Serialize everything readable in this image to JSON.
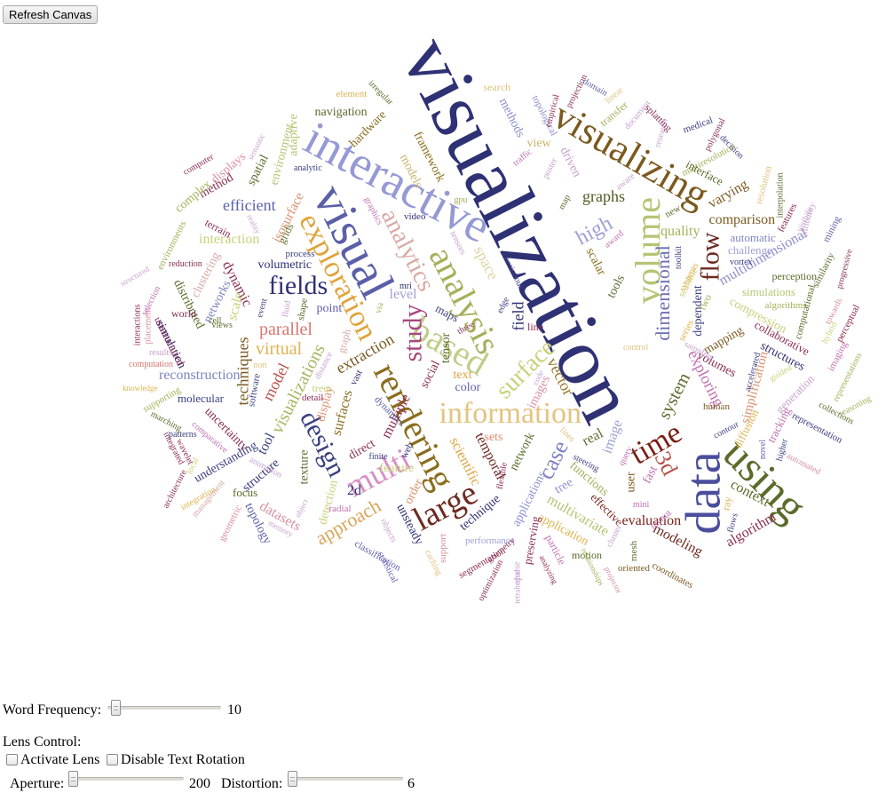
{
  "refresh_button": {
    "label": "Refresh Canvas"
  },
  "controls": {
    "word_frequency": {
      "label": "Word Frequency:",
      "value": "10",
      "slider_fraction": 0.03
    },
    "lens_control_label": "Lens Control:",
    "activate_lens": {
      "label": "Activate Lens",
      "checked": false
    },
    "disable_rotation": {
      "label": "Disable Text Rotation",
      "checked": false
    },
    "aperture": {
      "label": "Aperture:",
      "value": "200",
      "slider_fraction": 0.0
    },
    "distortion": {
      "label": "Distortion:",
      "value": "6",
      "slider_fraction": 0.0
    }
  },
  "word_cloud": {
    "words": [
      {
        "t": "visualization",
        "c": "#2e3174"
      },
      {
        "t": "data",
        "c": "#4a4e9c"
      },
      {
        "t": "interactive",
        "c": "#9599d4"
      },
      {
        "t": "visual",
        "c": "#5b5fa8"
      },
      {
        "t": "using",
        "c": "#5a6b2a"
      },
      {
        "t": "visualizing",
        "c": "#7b5a1f"
      },
      {
        "t": "information",
        "c": "#e3c47e"
      },
      {
        "t": "rendering",
        "c": "#8a6d1d"
      },
      {
        "t": "analysis",
        "c": "#a5b05a"
      },
      {
        "t": "volume",
        "c": "#b4c472"
      },
      {
        "t": "large",
        "c": "#6e2a20"
      },
      {
        "t": "based",
        "c": "#bfcd8a"
      },
      {
        "t": "exploration",
        "c": "#e0a33b"
      },
      {
        "t": "multi",
        "c": "#d98fc4"
      },
      {
        "t": "fields",
        "c": "#2e3174"
      },
      {
        "t": "time",
        "c": "#7a1f14"
      },
      {
        "t": "analytics",
        "c": "#d7a8a4"
      },
      {
        "t": "study",
        "c": "#a7467e"
      },
      {
        "t": "flow",
        "c": "#6e2a20"
      },
      {
        "t": "design",
        "c": "#3a3f80"
      },
      {
        "t": "surface",
        "c": "#c9d17a"
      },
      {
        "t": "3d",
        "c": "#b7534e"
      },
      {
        "t": "case",
        "c": "#7f83c4"
      },
      {
        "t": "high",
        "c": "#9da1d6"
      },
      {
        "t": "dimensional",
        "c": "#6a6eb4"
      },
      {
        "t": "approach",
        "c": "#d9a65a"
      },
      {
        "t": "parallel",
        "c": "#d9756e"
      },
      {
        "t": "virtual",
        "c": "#e0b24f"
      },
      {
        "t": "visualizations",
        "c": "#a5b55e"
      },
      {
        "t": "techniques",
        "c": "#7b5a1f"
      },
      {
        "t": "reconstruction",
        "c": "#7f83c4"
      },
      {
        "t": "efficient",
        "c": "#5b5fa8"
      },
      {
        "t": "interaction",
        "c": "#c9d17a"
      },
      {
        "t": "graphs",
        "c": "#4f5d22"
      },
      {
        "t": "system",
        "c": "#5a6b2a"
      },
      {
        "t": "exploring",
        "c": "#c06fb0"
      },
      {
        "t": "space",
        "c": "#e0d4a0"
      },
      {
        "t": "multidimensional",
        "c": "#8b8fce"
      },
      {
        "t": "comparison",
        "c": "#7b5a1f"
      },
      {
        "t": "quality",
        "c": "#a5b05a"
      },
      {
        "t": "dynamic",
        "c": "#8a2c52"
      },
      {
        "t": "model",
        "c": "#b7534e"
      },
      {
        "t": "extraction",
        "c": "#7b5a1f"
      },
      {
        "t": "field",
        "c": "#2e3174"
      },
      {
        "t": "vector",
        "c": "#9a7a2a"
      },
      {
        "t": "scientific",
        "c": "#e0a33b"
      },
      {
        "t": "multivariate",
        "c": "#b4c472"
      },
      {
        "t": "temporal",
        "c": "#6e2a20"
      },
      {
        "t": "datasets",
        "c": "#d98fa0"
      },
      {
        "t": "evaluation",
        "c": "#7a1f14"
      },
      {
        "t": "modeling",
        "c": "#6e2a20"
      },
      {
        "t": "algorithm",
        "c": "#8a2c52"
      },
      {
        "t": "context",
        "c": "#5a6b2a"
      },
      {
        "t": "simplification",
        "c": "#d98f6a"
      },
      {
        "t": "varying",
        "c": "#7b5a1f"
      },
      {
        "t": "navigation",
        "c": "#5a6b2a"
      },
      {
        "t": "framework",
        "c": "#8a6d1d"
      },
      {
        "t": "models",
        "c": "#c9b56a"
      },
      {
        "t": "view",
        "c": "#c9b56a"
      },
      {
        "t": "driven",
        "c": "#c9a0d0"
      },
      {
        "t": "isosurface",
        "c": "#d98f6a"
      },
      {
        "t": "environment",
        "c": "#b4c472"
      },
      {
        "t": "adaptive",
        "c": "#b4c472"
      },
      {
        "t": "spatial",
        "c": "#5a6b2a"
      },
      {
        "t": "method",
        "c": "#8a2c52"
      },
      {
        "t": "complex",
        "c": "#a5b05a"
      },
      {
        "t": "displays",
        "c": "#d98fa0"
      },
      {
        "t": "hardware",
        "c": "#8a6d1d"
      },
      {
        "t": "volumetric",
        "c": "#2e3174"
      },
      {
        "t": "point",
        "c": "#5b5fa8"
      },
      {
        "t": "level",
        "c": "#9da1d6"
      },
      {
        "t": "scalar",
        "c": "#8a6d1d"
      },
      {
        "t": "tools",
        "c": "#5a6b2a"
      },
      {
        "t": "structures",
        "c": "#2e3174"
      },
      {
        "t": "collaborative",
        "c": "#8a2c52"
      },
      {
        "t": "simulations",
        "c": "#b4c472"
      },
      {
        "t": "compression",
        "c": "#c9d17a"
      },
      {
        "t": "mapping",
        "c": "#7b5a1f"
      },
      {
        "t": "volumes",
        "c": "#8a2c52"
      },
      {
        "t": "dependent",
        "c": "#3a3f80"
      },
      {
        "t": "automatic",
        "c": "#7f83c4"
      },
      {
        "t": "challenge",
        "c": "#9da1d6"
      },
      {
        "t": "perception",
        "c": "#5a6b2a"
      },
      {
        "t": "algorithms",
        "c": "#a5b05a"
      },
      {
        "t": "simulation",
        "c": "#2e3174"
      },
      {
        "t": "networks",
        "c": "#7f83c4"
      },
      {
        "t": "clustering",
        "c": "#d7a8a4"
      },
      {
        "t": "distributed",
        "c": "#5a6b2a"
      },
      {
        "t": "unstructured",
        "c": "#8a2c52"
      },
      {
        "t": "molecular",
        "c": "#3a3f80"
      },
      {
        "t": "uncertainty",
        "c": "#8a2c52"
      },
      {
        "t": "understanding",
        "c": "#3a3f80"
      },
      {
        "t": "structure",
        "c": "#2e3174"
      },
      {
        "t": "topology",
        "c": "#5b5fa8"
      },
      {
        "t": "focus",
        "c": "#5a6b2a"
      },
      {
        "t": "texture",
        "c": "#5a6b2a"
      },
      {
        "t": "detection",
        "c": "#c9d17a"
      },
      {
        "t": "2d",
        "c": "#2e3174"
      },
      {
        "t": "direct",
        "c": "#8a2c52"
      },
      {
        "t": "feature",
        "c": "#c9d17a"
      },
      {
        "t": "surfaces",
        "c": "#8a6d1d"
      },
      {
        "t": "display",
        "c": "#d98f6a"
      },
      {
        "t": "trees",
        "c": "#c9d17a"
      },
      {
        "t": "graph",
        "c": "#d7a8a4"
      },
      {
        "t": "tool",
        "c": "#3a3f80"
      },
      {
        "t": "grids",
        "c": "#5a6b2a"
      },
      {
        "t": "real",
        "c": "#5a6b2a"
      },
      {
        "t": "image",
        "c": "#9da1d6"
      },
      {
        "t": "fast",
        "c": "#c06fb0"
      },
      {
        "t": "user",
        "c": "#7b5a1f"
      },
      {
        "t": "functions",
        "c": "#a5b05a"
      },
      {
        "t": "network",
        "c": "#5a6b2a"
      },
      {
        "t": "applications",
        "c": "#8b8fce"
      },
      {
        "t": "tree",
        "c": "#8b8fce"
      },
      {
        "t": "effective",
        "c": "#7a1f14"
      },
      {
        "t": "technique",
        "c": "#2e3174"
      },
      {
        "t": "application",
        "c": "#e0b24f"
      },
      {
        "t": "particle",
        "c": "#c06fb0"
      },
      {
        "t": "preserving",
        "c": "#8a2c52"
      },
      {
        "t": "coordinates",
        "c": "#7b5a1f"
      },
      {
        "t": "sets",
        "c": "#d98f6a"
      },
      {
        "t": "social",
        "c": "#8a2c52"
      },
      {
        "t": "maps",
        "c": "#3a3f80"
      },
      {
        "t": "tensor",
        "c": "#5a6b2a"
      },
      {
        "t": "text",
        "c": "#e0a33b"
      },
      {
        "t": "color",
        "c": "#5b5fa8"
      },
      {
        "t": "performance",
        "c": "#9da1d6"
      },
      {
        "t": "mesh",
        "c": "#5a6b2a"
      },
      {
        "t": "oriented",
        "c": "#7b5a1f"
      },
      {
        "t": "motion",
        "c": "#5a6b2a"
      },
      {
        "t": "segmentation",
        "c": "#8a2c52"
      },
      {
        "t": "classification",
        "c": "#5b5fa8"
      },
      {
        "t": "statistical",
        "c": "#5b5fa8"
      },
      {
        "t": "unsteady",
        "c": "#2e3174"
      },
      {
        "t": "order",
        "c": "#d98f6a"
      },
      {
        "t": "radial",
        "c": "#c06fb0"
      },
      {
        "t": "geometric",
        "c": "#d98fa0"
      },
      {
        "t": "integration",
        "c": "#e0b24f"
      },
      {
        "t": "management",
        "c": "#d7a8a4"
      },
      {
        "t": "architecture",
        "c": "#8a2c52"
      },
      {
        "t": "wavelet",
        "c": "#8a2c52"
      },
      {
        "t": "integrated",
        "c": "#8a2c52"
      },
      {
        "t": "patterns",
        "c": "#3a3f80"
      },
      {
        "t": "marching",
        "c": "#5a6b2a"
      },
      {
        "t": "supporting",
        "c": "#a5b05a"
      },
      {
        "t": "knowledge",
        "c": "#e0b24f"
      },
      {
        "t": "computation",
        "c": "#d9756e"
      },
      {
        "t": "results",
        "c": "#c9a0d0"
      },
      {
        "t": "interactions",
        "c": "#8a2c52"
      },
      {
        "t": "placement",
        "c": "#d98fa0"
      },
      {
        "t": "selection",
        "c": "#c06fb0"
      },
      {
        "t": "world",
        "c": "#8a2c52"
      },
      {
        "t": "cell",
        "c": "#5a6b2a"
      },
      {
        "t": "views",
        "c": "#5a6b2a"
      },
      {
        "t": "terrain",
        "c": "#8a2c52"
      },
      {
        "t": "reduction",
        "c": "#8a2c52"
      },
      {
        "t": "environments",
        "c": "#a5b05a"
      },
      {
        "t": "structured",
        "c": "#c9a0d0"
      },
      {
        "t": "computer",
        "c": "#8a2c52"
      },
      {
        "t": "semantic",
        "c": "#c9a0d0"
      },
      {
        "t": "element",
        "c": "#e0b24f"
      },
      {
        "t": "irregular",
        "c": "#5a6b2a"
      },
      {
        "t": "search",
        "c": "#e0c27e"
      },
      {
        "t": "methods",
        "c": "#8b8fce"
      },
      {
        "t": "topological",
        "c": "#8b8fce"
      },
      {
        "t": "empirical",
        "c": "#8a2c52"
      },
      {
        "t": "projection",
        "c": "#8a2c52"
      },
      {
        "t": "domain",
        "c": "#5b5fa8"
      },
      {
        "t": "linear",
        "c": "#e0c27e"
      },
      {
        "t": "transfer",
        "c": "#a5b05a"
      },
      {
        "t": "document",
        "c": "#c9a0d0"
      },
      {
        "t": "research",
        "c": "#c9a0d0"
      },
      {
        "t": "splatting",
        "c": "#8a2c52"
      },
      {
        "t": "medical",
        "c": "#3a3f80"
      },
      {
        "t": "polygonal",
        "c": "#8a2c52"
      },
      {
        "t": "multiresolution",
        "c": "#a5b05a"
      },
      {
        "t": "decision",
        "c": "#3a3f80"
      },
      {
        "t": "interface",
        "c": "#5a6b2a"
      },
      {
        "t": "interpolation",
        "c": "#5a6b2a"
      },
      {
        "t": "resolution",
        "c": "#e0c27e"
      },
      {
        "t": "features",
        "c": "#8a2c52"
      },
      {
        "t": "visibility",
        "c": "#c9a0d0"
      },
      {
        "t": "attribute",
        "c": "#c9a0d0"
      },
      {
        "t": "mining",
        "c": "#5b5fa8"
      },
      {
        "t": "progressive",
        "c": "#8a2c52"
      },
      {
        "t": "similarity",
        "c": "#5a6b2a"
      },
      {
        "t": "computational",
        "c": "#5a6b2a"
      },
      {
        "t": "towards",
        "c": "#d98fa0"
      },
      {
        "t": "perceptual",
        "c": "#8a2c52"
      },
      {
        "t": "hybrid",
        "c": "#c9d17a"
      },
      {
        "t": "imaging",
        "c": "#c06fb0"
      },
      {
        "t": "representations",
        "c": "#a5b05a"
      },
      {
        "t": "reasoning",
        "c": "#a5b05a"
      },
      {
        "t": "collections",
        "c": "#5a6b2a"
      },
      {
        "t": "representation",
        "c": "#3a3f80"
      },
      {
        "t": "automated",
        "c": "#d98fa0"
      },
      {
        "t": "higher",
        "c": "#3a3f80"
      },
      {
        "t": "novel",
        "c": "#5b5fa8"
      },
      {
        "t": "generation",
        "c": "#c9a0d0"
      },
      {
        "t": "tracking",
        "c": "#c06fb0"
      },
      {
        "t": "diffusion",
        "c": "#e0b24f"
      },
      {
        "t": "guided",
        "c": "#c9d17a"
      },
      {
        "t": "accelerated",
        "c": "#3a3f80"
      },
      {
        "t": "human",
        "c": "#7b5a1f"
      },
      {
        "t": "contour",
        "c": "#3a3f80"
      },
      {
        "t": "flows",
        "c": "#3a3f80"
      },
      {
        "t": "ray",
        "c": "#e0b24f"
      },
      {
        "t": "layout",
        "c": "#c06fb0"
      },
      {
        "t": "mini",
        "c": "#c06fb0"
      },
      {
        "t": "cluster",
        "c": "#c9a0d0"
      },
      {
        "t": "query",
        "c": "#c06fb0"
      },
      {
        "t": "steering",
        "c": "#3a3f80"
      },
      {
        "t": "lines",
        "c": "#e0c27e"
      },
      {
        "t": "web",
        "c": "#2e3174"
      },
      {
        "t": "finite",
        "c": "#3a3f80"
      },
      {
        "t": "multiple",
        "c": "#8a2c52"
      },
      {
        "t": "dynamics",
        "c": "#5b5fa8"
      },
      {
        "t": "vast",
        "c": "#2e3174"
      },
      {
        "t": "detail",
        "c": "#8a2c52"
      },
      {
        "t": "distance",
        "c": "#c9a0d0"
      },
      {
        "t": "software",
        "c": "#3a3f80"
      },
      {
        "t": "non",
        "c": "#e0c27e"
      },
      {
        "t": "scale",
        "c": "#c9d17a"
      },
      {
        "t": "shape",
        "c": "#5a6b2a"
      },
      {
        "t": "fluid",
        "c": "#c9a0d0"
      },
      {
        "t": "event",
        "c": "#3a3f80"
      },
      {
        "t": "via",
        "c": "#a5b05a"
      },
      {
        "t": "mri",
        "c": "#2e3174"
      },
      {
        "t": "three",
        "c": "#8a2c52"
      },
      {
        "t": "edge",
        "c": "#3a3f80"
      },
      {
        "t": "line",
        "c": "#8a2c52"
      },
      {
        "t": "images",
        "c": "#d98fa0"
      },
      {
        "t": "control",
        "c": "#e0c27e"
      },
      {
        "t": "sampling",
        "c": "#c9a0d0"
      },
      {
        "t": "video",
        "c": "#2e3174"
      },
      {
        "t": "process",
        "c": "#3a3f80"
      },
      {
        "t": "analytic",
        "c": "#3a3f80"
      },
      {
        "t": "reality",
        "c": "#c9a0d0"
      },
      {
        "t": "graphics",
        "c": "#c06fb0"
      },
      {
        "t": "gpu",
        "c": "#a5b05a"
      },
      {
        "t": "continuous",
        "c": "#3a3f80"
      },
      {
        "t": "tensors",
        "c": "#c9a0d0"
      },
      {
        "t": "map",
        "c": "#5a6b2a"
      },
      {
        "t": "poster",
        "c": "#c9a0d0"
      },
      {
        "t": "traffic",
        "c": "#c06fb0"
      },
      {
        "t": "aware",
        "c": "#c9a0d0"
      },
      {
        "t": "award",
        "c": "#c06fb0"
      },
      {
        "t": "new",
        "c": "#5a6b2a"
      },
      {
        "t": "vortex",
        "c": "#3a3f80"
      },
      {
        "t": "toolkit",
        "c": "#3a3f80"
      },
      {
        "t": "scalable",
        "c": "#c9d17a"
      },
      {
        "t": "series",
        "c": "#e0b24f"
      },
      {
        "t": "systems",
        "c": "#e0b24f"
      },
      {
        "t": "two",
        "c": "#a5b05a"
      },
      {
        "t": "objects",
        "c": "#c9a0d0"
      },
      {
        "t": "caching",
        "c": "#e0c27e"
      },
      {
        "t": "support",
        "c": "#d98fa0"
      },
      {
        "t": "optimization",
        "c": "#8a2c52"
      },
      {
        "t": "geometry",
        "c": "#8a2c52"
      },
      {
        "t": "sparse",
        "c": "#c9a0d0"
      },
      {
        "t": "tetrahedral",
        "c": "#c9a0d0"
      },
      {
        "t": "analyzing",
        "c": "#8a2c52"
      },
      {
        "t": "relationships",
        "c": "#a5b05a"
      },
      {
        "t": "projector",
        "c": "#d98fa0"
      },
      {
        "t": "memory",
        "c": "#c9a0d0"
      },
      {
        "t": "animation",
        "c": "#c9a0d0"
      },
      {
        "t": "comparative",
        "c": "#c06fb0"
      },
      {
        "t": "local",
        "c": "#c9d17a"
      },
      {
        "t": "object",
        "c": "#c9a0d0"
      },
      {
        "t": "code",
        "c": "#c9a0d0"
      },
      {
        "t": "flexible",
        "c": "#8a2c52"
      }
    ]
  }
}
